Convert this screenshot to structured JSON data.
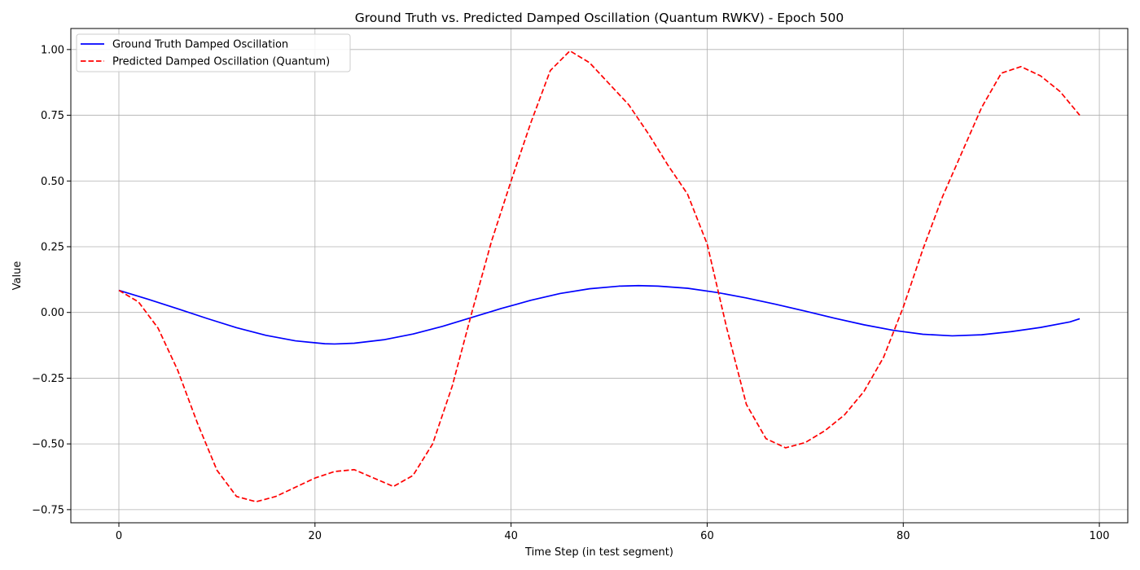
{
  "chart_data": {
    "type": "line",
    "title": "Ground Truth vs. Predicted Damped Oscillation (Quantum RWKV) - Epoch 500",
    "xlabel": "Time Step (in test segment)",
    "ylabel": "Value",
    "xlim": [
      -4.9,
      102.9
    ],
    "ylim": [
      -0.8,
      1.08
    ],
    "xticks": [
      0,
      20,
      40,
      60,
      80,
      100
    ],
    "xtick_labels": [
      "0",
      "20",
      "40",
      "60",
      "80",
      "100"
    ],
    "yticks": [
      -0.75,
      -0.5,
      -0.25,
      0.0,
      0.25,
      0.5,
      0.75,
      1.0
    ],
    "ytick_labels": [
      "−0.75",
      "−0.50",
      "−0.25",
      "0.00",
      "0.25",
      "0.50",
      "0.75",
      "1.00"
    ],
    "grid": true,
    "legend_position": "top-left",
    "series": [
      {
        "name": "Ground Truth Damped Oscillation",
        "color": "#0000ff",
        "style": "solid",
        "points": [
          [
            0,
            0.084
          ],
          [
            3,
            0.05
          ],
          [
            6,
            0.014
          ],
          [
            9,
            -0.023
          ],
          [
            12,
            -0.058
          ],
          [
            15,
            -0.087
          ],
          [
            18,
            -0.108
          ],
          [
            21,
            -0.119
          ],
          [
            22,
            -0.12
          ],
          [
            24,
            -0.117
          ],
          [
            27,
            -0.104
          ],
          [
            30,
            -0.082
          ],
          [
            33,
            -0.053
          ],
          [
            36,
            -0.019
          ],
          [
            39,
            0.015
          ],
          [
            42,
            0.046
          ],
          [
            45,
            0.072
          ],
          [
            48,
            0.09
          ],
          [
            51,
            0.1
          ],
          [
            53,
            0.102
          ],
          [
            55,
            0.1
          ],
          [
            58,
            0.092
          ],
          [
            61,
            0.076
          ],
          [
            64,
            0.055
          ],
          [
            67,
            0.031
          ],
          [
            70,
            0.005
          ],
          [
            73,
            -0.022
          ],
          [
            76,
            -0.047
          ],
          [
            79,
            -0.068
          ],
          [
            82,
            -0.083
          ],
          [
            85,
            -0.089
          ],
          [
            88,
            -0.085
          ],
          [
            91,
            -0.073
          ],
          [
            94,
            -0.057
          ],
          [
            97,
            -0.036
          ],
          [
            98,
            -0.024
          ]
        ]
      },
      {
        "name": "Predicted Damped Oscillation (Quantum)",
        "color": "#ff0000",
        "style": "dashed",
        "points": [
          [
            0,
            0.084
          ],
          [
            2,
            0.04
          ],
          [
            4,
            -0.06
          ],
          [
            6,
            -0.22
          ],
          [
            8,
            -0.42
          ],
          [
            10,
            -0.6
          ],
          [
            12,
            -0.7
          ],
          [
            14,
            -0.72
          ],
          [
            16,
            -0.7
          ],
          [
            18,
            -0.665
          ],
          [
            20,
            -0.63
          ],
          [
            22,
            -0.605
          ],
          [
            24,
            -0.598
          ],
          [
            26,
            -0.63
          ],
          [
            28,
            -0.662
          ],
          [
            30,
            -0.62
          ],
          [
            32,
            -0.5
          ],
          [
            34,
            -0.28
          ],
          [
            36,
            0.0
          ],
          [
            38,
            0.27
          ],
          [
            40,
            0.5
          ],
          [
            42,
            0.72
          ],
          [
            44,
            0.92
          ],
          [
            46,
            0.995
          ],
          [
            48,
            0.95
          ],
          [
            50,
            0.87
          ],
          [
            52,
            0.79
          ],
          [
            54,
            0.68
          ],
          [
            56,
            0.56
          ],
          [
            58,
            0.45
          ],
          [
            60,
            0.26
          ],
          [
            62,
            -0.06
          ],
          [
            64,
            -0.35
          ],
          [
            66,
            -0.48
          ],
          [
            68,
            -0.515
          ],
          [
            70,
            -0.495
          ],
          [
            72,
            -0.45
          ],
          [
            74,
            -0.39
          ],
          [
            76,
            -0.3
          ],
          [
            78,
            -0.17
          ],
          [
            80,
            0.02
          ],
          [
            82,
            0.24
          ],
          [
            84,
            0.44
          ],
          [
            86,
            0.61
          ],
          [
            88,
            0.78
          ],
          [
            90,
            0.91
          ],
          [
            92,
            0.935
          ],
          [
            94,
            0.9
          ],
          [
            96,
            0.84
          ],
          [
            98,
            0.75
          ]
        ]
      }
    ]
  }
}
